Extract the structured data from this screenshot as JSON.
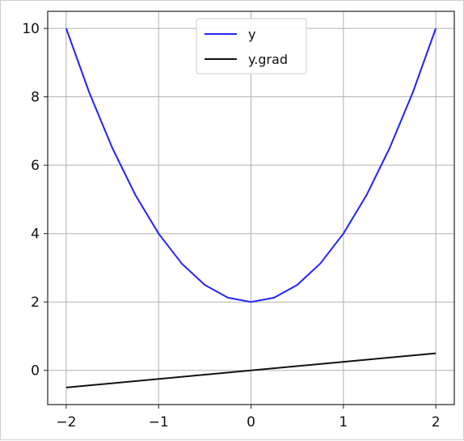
{
  "chart_data": {
    "type": "line",
    "title": "",
    "xlabel": "",
    "ylabel": "",
    "xlim": [
      -2.2,
      2.2
    ],
    "ylim": [
      -1.0,
      10.5
    ],
    "grid": true,
    "legend_position": "top-center",
    "xticks": [
      -2,
      -1,
      0,
      1,
      2
    ],
    "xtick_labels": [
      "−2",
      "−1",
      "0",
      "1",
      "2"
    ],
    "yticks": [
      0,
      2,
      4,
      6,
      8,
      10
    ],
    "ytick_labels": [
      "0",
      "2",
      "4",
      "6",
      "8",
      "10"
    ],
    "series": [
      {
        "name": "y",
        "color": "#2222ff",
        "x": [
          -2.0,
          -1.75,
          -1.5,
          -1.25,
          -1.0,
          -0.75,
          -0.5,
          -0.25,
          0.0,
          0.25,
          0.5,
          0.75,
          1.0,
          1.25,
          1.5,
          1.75,
          2.0
        ],
        "y": [
          10.0,
          8.125,
          6.5,
          5.125,
          4.0,
          3.125,
          2.5,
          2.125,
          2.0,
          2.125,
          2.5,
          3.125,
          4.0,
          5.125,
          6.5,
          8.125,
          10.0
        ]
      },
      {
        "name": "y.grad",
        "color": "#111111",
        "x": [
          -2.0,
          2.0
        ],
        "y": [
          -0.5,
          0.5
        ]
      }
    ]
  }
}
